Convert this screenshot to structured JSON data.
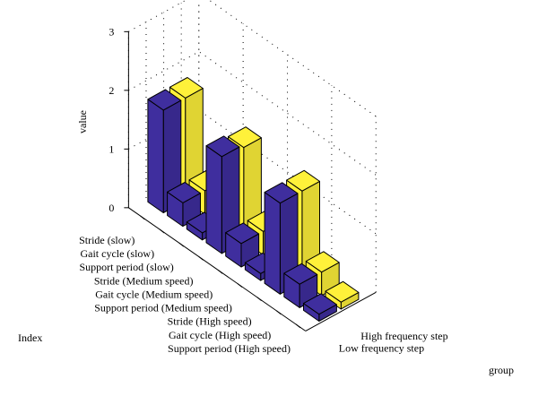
{
  "chart_data": {
    "type": "bar",
    "title": "",
    "zlabel": "value",
    "xlabel": "Index",
    "ylabel": "group",
    "zlim": [
      0,
      3
    ],
    "zticks": [
      "0",
      "1",
      "2",
      "3"
    ],
    "grid": true,
    "categories": [
      "Stride (slow)",
      "Gait cycle (slow)",
      "Support period (slow)",
      "Stride (Medium speed)",
      "Gait cycle (Medium speed)",
      "Support period (Medium speed)",
      "Stride (High speed)",
      "Gait cycle (High speed)",
      "Support period (High speed)"
    ],
    "series": [
      {
        "name": "Low frequency step",
        "color": "#3f2e9e",
        "values": [
          1.75,
          0.4,
          0.12,
          1.65,
          0.4,
          0.12,
          1.55,
          0.4,
          0.12
        ]
      },
      {
        "name": "High frequency step",
        "color": "#fff13a",
        "values": [
          1.75,
          0.4,
          0.12,
          1.6,
          0.4,
          0.12,
          1.55,
          0.4,
          0.12
        ]
      }
    ],
    "colors": {
      "low": "#3f2e9e",
      "high": "#fff13a"
    }
  }
}
